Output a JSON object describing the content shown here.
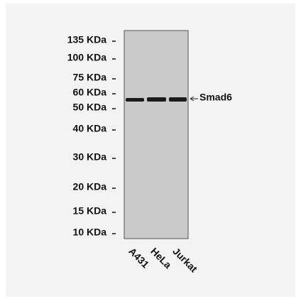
{
  "markers": [
    "135 KDa",
    "100 KDa",
    "75 KDa",
    "60 KDa",
    "50 KDa",
    "40 KDa",
    "30 KDa",
    "20 KDa",
    "15 KDa",
    "10 KDa"
  ],
  "lanes": [
    "A431",
    "HeLa",
    "Jurkat"
  ],
  "band_label": "Smad6"
}
